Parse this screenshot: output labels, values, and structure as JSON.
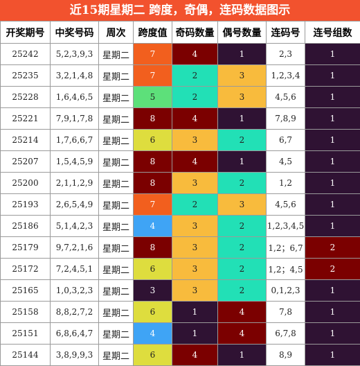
{
  "title": "近15期星期二 跨度，奇偶，连码数据图示",
  "headers": [
    "开奖期号",
    "中奖号码",
    "周次",
    "跨度值",
    "奇码数量",
    "偶号数量",
    "连码号",
    "连号组数"
  ],
  "colors": {
    "title_bg": "#f2522e",
    "dark_red": "#7b0000",
    "dark_purple": "#2f1233",
    "orange": "#f25f1e",
    "green": "#5de07a",
    "yellow": "#dedd3e",
    "blue": "#3fa4f5",
    "amber": "#f8bb3d",
    "teal": "#22e0b6"
  },
  "rows": [
    {
      "period": "25242",
      "numbers": "5,2,3,9,3",
      "weekday": "星期二",
      "span": "7",
      "odd": "4",
      "even": "1",
      "consecutive": "2,3",
      "groups": "1"
    },
    {
      "period": "25235",
      "numbers": "3,2,1,4,8",
      "weekday": "星期二",
      "span": "7",
      "odd": "2",
      "even": "3",
      "consecutive": "1,2,3,4",
      "groups": "1"
    },
    {
      "period": "25228",
      "numbers": "1,6,4,6,5",
      "weekday": "星期二",
      "span": "5",
      "odd": "2",
      "even": "3",
      "consecutive": "4,5,6",
      "groups": "1"
    },
    {
      "period": "25221",
      "numbers": "7,9,1,7,8",
      "weekday": "星期二",
      "span": "8",
      "odd": "4",
      "even": "1",
      "consecutive": "7,8,9",
      "groups": "1"
    },
    {
      "period": "25214",
      "numbers": "1,7,6,6,7",
      "weekday": "星期二",
      "span": "6",
      "odd": "3",
      "even": "2",
      "consecutive": "6,7",
      "groups": "1"
    },
    {
      "period": "25207",
      "numbers": "1,5,4,5,9",
      "weekday": "星期二",
      "span": "8",
      "odd": "4",
      "even": "1",
      "consecutive": "4,5",
      "groups": "1"
    },
    {
      "period": "25200",
      "numbers": "2,1,1,2,9",
      "weekday": "星期二",
      "span": "8",
      "odd": "3",
      "even": "2",
      "consecutive": "1,2",
      "groups": "1"
    },
    {
      "period": "25193",
      "numbers": "2,6,5,4,9",
      "weekday": "星期二",
      "span": "7",
      "odd": "2",
      "even": "3",
      "consecutive": "4,5,6",
      "groups": "1"
    },
    {
      "period": "25186",
      "numbers": "5,1,4,2,3",
      "weekday": "星期二",
      "span": "4",
      "odd": "3",
      "even": "2",
      "consecutive": "1,2,3,4,5",
      "groups": "1"
    },
    {
      "period": "25179",
      "numbers": "9,7,2,1,6",
      "weekday": "星期二",
      "span": "8",
      "odd": "3",
      "even": "2",
      "consecutive": "1,2；6,7",
      "groups": "2"
    },
    {
      "period": "25172",
      "numbers": "7,2,4,5,1",
      "weekday": "星期二",
      "span": "6",
      "odd": "3",
      "even": "2",
      "consecutive": "1,2；4,5",
      "groups": "2"
    },
    {
      "period": "25165",
      "numbers": "1,0,3,2,3",
      "weekday": "星期二",
      "span": "3",
      "odd": "3",
      "even": "2",
      "consecutive": "0,1,2,3",
      "groups": "1"
    },
    {
      "period": "25158",
      "numbers": "8,8,2,7,2",
      "weekday": "星期二",
      "span": "6",
      "odd": "1",
      "even": "4",
      "consecutive": "7,8",
      "groups": "1"
    },
    {
      "period": "25151",
      "numbers": "6,8,6,4,7",
      "weekday": "星期二",
      "span": "4",
      "odd": "1",
      "even": "4",
      "consecutive": "6,7,8",
      "groups": "1"
    },
    {
      "period": "25144",
      "numbers": "3,8,9,9,3",
      "weekday": "星期二",
      "span": "6",
      "odd": "4",
      "even": "1",
      "consecutive": "8,9",
      "groups": "1"
    }
  ]
}
